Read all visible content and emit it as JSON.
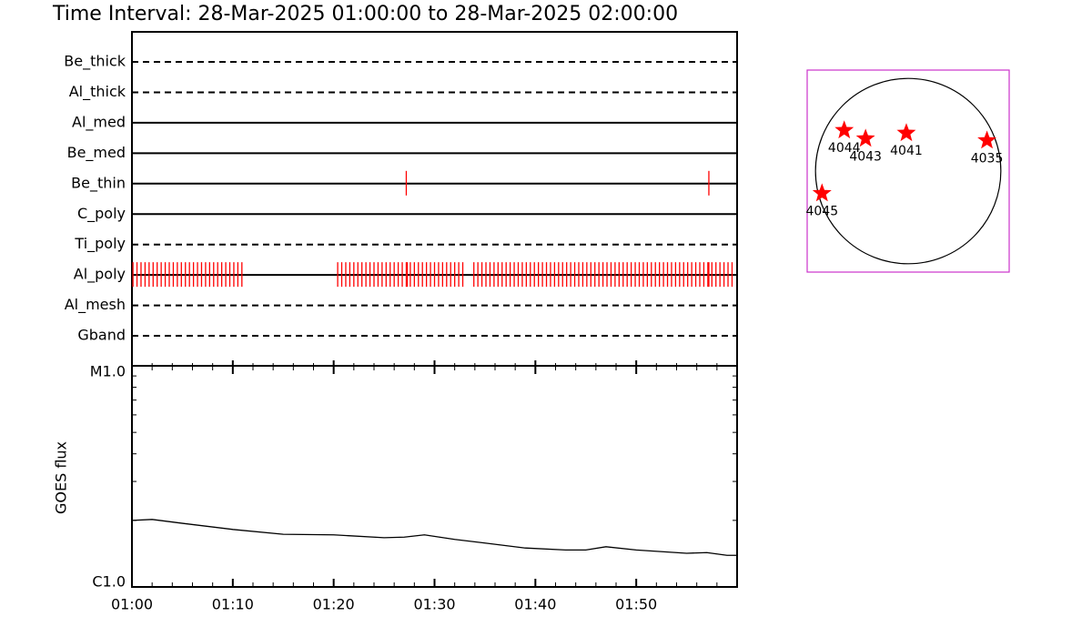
{
  "chart_data": [
    {
      "type": "timeline",
      "title": "Time Interval: 28-Mar-2025 01:00:00 to 28-Mar-2025 02:00:00",
      "xlim": [
        0,
        60
      ],
      "tick_color": "#ff0000",
      "series": [
        {
          "name": "Be_thick",
          "dashed": true,
          "values": []
        },
        {
          "name": "Al_thick",
          "dashed": true,
          "values": []
        },
        {
          "name": "Al_med",
          "dashed": false,
          "values": []
        },
        {
          "name": "Be_med",
          "dashed": false,
          "values": []
        },
        {
          "name": "Be_thin",
          "dashed": false,
          "values": [
            27.2,
            57.2
          ]
        },
        {
          "name": "C_poly",
          "dashed": false,
          "values": []
        },
        {
          "name": "Ti_poly",
          "dashed": true,
          "values": []
        },
        {
          "name": "Al_poly",
          "dashed": false,
          "values": [
            0.1,
            0.5,
            0.9,
            1.3,
            1.7,
            2.1,
            2.5,
            2.9,
            3.3,
            3.7,
            4.1,
            4.5,
            4.9,
            5.3,
            5.7,
            6.1,
            6.5,
            6.9,
            7.3,
            7.7,
            8.1,
            8.5,
            8.9,
            9.3,
            9.7,
            10.1,
            10.5,
            10.9,
            20.4,
            20.8,
            21.2,
            21.6,
            22.0,
            22.4,
            22.8,
            23.2,
            23.6,
            24.0,
            24.4,
            24.8,
            25.2,
            25.6,
            26.0,
            26.4,
            26.8,
            27.2,
            27.3,
            27.6,
            28.0,
            28.4,
            28.8,
            29.2,
            29.6,
            30.0,
            30.4,
            30.8,
            31.2,
            31.6,
            32.0,
            32.4,
            32.8,
            33.9,
            34.3,
            34.7,
            35.1,
            35.5,
            35.9,
            36.3,
            36.7,
            37.1,
            37.5,
            37.9,
            38.3,
            38.7,
            39.1,
            39.5,
            39.9,
            40.3,
            40.7,
            41.1,
            41.5,
            41.9,
            42.3,
            42.7,
            43.1,
            43.5,
            43.9,
            44.3,
            44.7,
            45.1,
            45.5,
            45.9,
            46.3,
            46.7,
            47.1,
            47.5,
            47.9,
            48.3,
            48.7,
            49.1,
            49.5,
            49.9,
            50.3,
            50.7,
            51.1,
            51.5,
            51.9,
            52.3,
            52.7,
            53.1,
            53.5,
            53.9,
            54.3,
            54.7,
            55.1,
            55.5,
            55.9,
            56.3,
            56.7,
            57.1,
            57.2,
            57.5,
            57.9,
            58.3,
            58.7,
            59.1,
            59.5
          ]
        },
        {
          "name": "Al_mesh",
          "dashed": true,
          "values": []
        },
        {
          "name": "Gband",
          "dashed": true,
          "values": []
        }
      ]
    },
    {
      "type": "line",
      "ylabel": "GOES flux",
      "x": [
        0,
        2,
        5,
        10,
        15,
        20,
        25,
        27,
        29,
        32,
        35,
        39,
        43,
        45,
        47,
        50,
        55,
        57,
        59,
        60
      ],
      "values": [
        2e-06,
        2.02e-06,
        1.94e-06,
        1.82e-06,
        1.73e-06,
        1.72e-06,
        1.67e-06,
        1.68e-06,
        1.72e-06,
        1.64e-06,
        1.58e-06,
        1.5e-06,
        1.47e-06,
        1.47e-06,
        1.52e-06,
        1.47e-06,
        1.42e-06,
        1.43e-06,
        1.39e-06,
        1.39e-06
      ],
      "color": "#000000",
      "xlim": [
        0,
        60
      ],
      "xticks": [
        {
          "value": 0,
          "label": "01:00"
        },
        {
          "value": 10,
          "label": "01:10"
        },
        {
          "value": 20,
          "label": "01:20"
        },
        {
          "value": 30,
          "label": "01:30"
        },
        {
          "value": 40,
          "label": "01:40"
        },
        {
          "value": 50,
          "label": "01:50"
        }
      ],
      "minor_xticks": [
        2,
        4,
        6,
        8,
        12,
        14,
        16,
        18,
        22,
        24,
        26,
        28,
        32,
        34,
        36,
        38,
        42,
        44,
        46,
        48,
        52,
        54,
        56,
        58
      ],
      "ylim": [
        1e-06,
        1e-05
      ],
      "log_y": true,
      "yticks": [
        {
          "value": 1e-06,
          "label": "C1.0"
        },
        {
          "value": 1e-05,
          "label": "M1.0"
        }
      ],
      "minor_yticks": [
        2e-06,
        3e-06,
        4e-06,
        5e-06,
        6e-06,
        7e-06,
        8e-06,
        9e-06
      ]
    },
    {
      "type": "scatter",
      "labels": [
        "4044",
        "4043",
        "4041",
        "4035",
        "4045"
      ],
      "x": [
        -0.69,
        -0.46,
        -0.02,
        0.85,
        -0.93
      ],
      "values": [
        0.44,
        0.35,
        0.41,
        0.33,
        -0.24
      ],
      "color": "#ff0000",
      "frame_color": "#cc33cc",
      "xlim": [
        -1.09,
        1.09
      ],
      "ylim": [
        -1.09,
        1.09
      ]
    }
  ]
}
